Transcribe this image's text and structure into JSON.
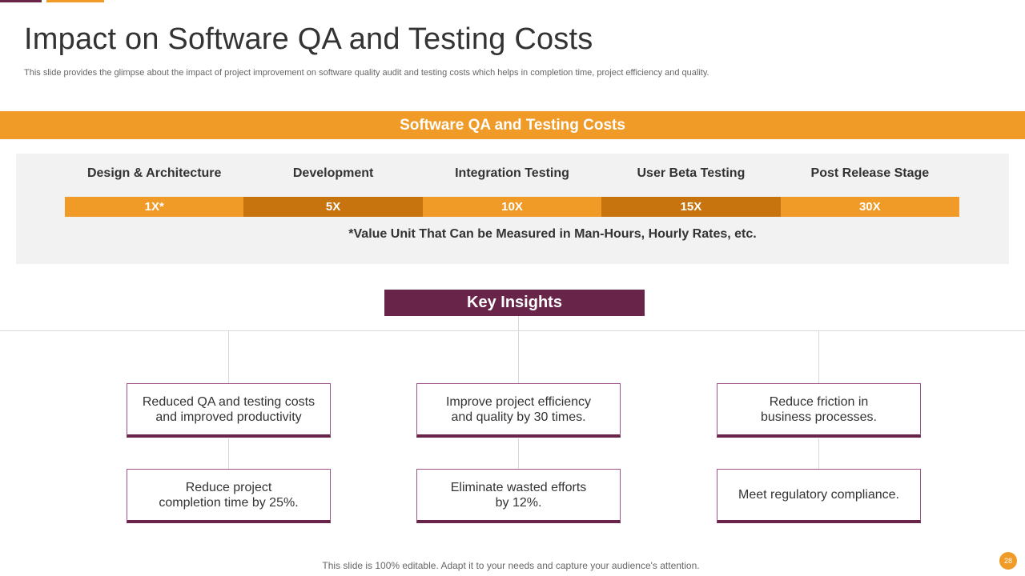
{
  "title": "Impact on Software QA and Testing Costs",
  "subtitle": "This slide provides the glimpse about the impact of project improvement on software quality audit and testing costs which helps in completion time, project efficiency and quality.",
  "section_header": "Software QA and Testing Costs",
  "stages": [
    {
      "label": "Design & Architecture",
      "multiplier": "1X*"
    },
    {
      "label": "Development",
      "multiplier": "5X"
    },
    {
      "label": "Integration Testing",
      "multiplier": "10X"
    },
    {
      "label": "User Beta Testing",
      "multiplier": "15X"
    },
    {
      "label": "Post Release Stage",
      "multiplier": "30X"
    }
  ],
  "note": "*Value Unit That Can be Measured in Man-Hours, Hourly Rates, etc.",
  "key_insights": {
    "title": "Key Insights",
    "cards": [
      "Reduced QA and testing costs\nand improved productivity",
      "Improve project efficiency\nand quality by 30 times.",
      "Reduce friction in\nbusiness processes.",
      "Reduce project\ncompletion time by 25%.",
      "Eliminate wasted efforts\nby 12%.",
      "Meet regulatory compliance."
    ]
  },
  "footer": "This slide is 100% editable. Adapt it to your needs and capture your audience's attention.",
  "page_number": "28",
  "colors": {
    "orange": "#f09b27",
    "dark_orange": "#c7740f",
    "purple": "#682449"
  }
}
